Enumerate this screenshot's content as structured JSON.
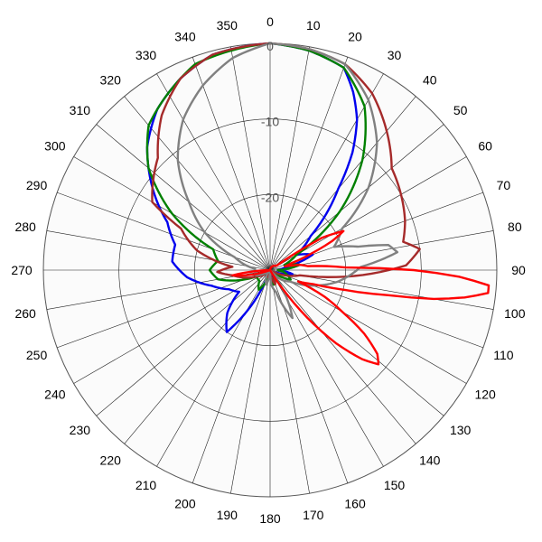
{
  "chart_data": {
    "type": "polar-line",
    "angle_unit": "degrees",
    "angle_zero": "top",
    "angle_direction": "clockwise",
    "angle_ticks": [
      "0",
      "10",
      "20",
      "30",
      "40",
      "50",
      "60",
      "70",
      "80",
      "90",
      "100",
      "110",
      "120",
      "130",
      "140",
      "150",
      "160",
      "170",
      "180",
      "190",
      "200",
      "210",
      "220",
      "230",
      "240",
      "250",
      "260",
      "270",
      "280",
      "290",
      "300",
      "310",
      "320",
      "330",
      "340",
      "350"
    ],
    "radial_ticks": [
      "0",
      "-10",
      "-20"
    ],
    "radial_range": [
      -30,
      0
    ],
    "grid": true,
    "series": [
      {
        "color": "#0000ee",
        "points": [
          [
            0,
            0
          ],
          [
            10,
            -0.5
          ],
          [
            20,
            -1.5
          ],
          [
            25,
            -4
          ],
          [
            30,
            -7
          ],
          [
            35,
            -11
          ],
          [
            40,
            -16
          ],
          [
            50,
            -23
          ],
          [
            60,
            -26
          ],
          [
            70,
            -24
          ],
          [
            80,
            -28
          ],
          [
            90,
            -29
          ],
          [
            100,
            -27
          ],
          [
            110,
            -29
          ],
          [
            130,
            -30
          ],
          [
            150,
            -30
          ],
          [
            170,
            -29
          ],
          [
            180,
            -30
          ],
          [
            200,
            -30
          ],
          [
            215,
            -20
          ],
          [
            225,
            -22
          ],
          [
            235,
            -25
          ],
          [
            245,
            -24
          ],
          [
            255,
            -22
          ],
          [
            265,
            -19
          ],
          [
            275,
            -17
          ],
          [
            285,
            -17
          ],
          [
            295,
            -15
          ],
          [
            305,
            -11
          ],
          [
            315,
            -7
          ],
          [
            325,
            -4
          ],
          [
            335,
            -2
          ],
          [
            345,
            -0.5
          ],
          [
            360,
            0
          ]
        ]
      },
      {
        "color": "#008000",
        "points": [
          [
            0,
            0
          ],
          [
            10,
            -0.5
          ],
          [
            20,
            -1.5
          ],
          [
            30,
            -5
          ],
          [
            40,
            -11
          ],
          [
            50,
            -18
          ],
          [
            60,
            -26
          ],
          [
            70,
            -28
          ],
          [
            80,
            -26
          ],
          [
            90,
            -29
          ],
          [
            100,
            -28
          ],
          [
            115,
            -27
          ],
          [
            130,
            -30
          ],
          [
            150,
            -29
          ],
          [
            165,
            -28
          ],
          [
            180,
            -30
          ],
          [
            195,
            -29
          ],
          [
            210,
            -27
          ],
          [
            225,
            -28
          ],
          [
            245,
            -28
          ],
          [
            260,
            -23
          ],
          [
            270,
            -22
          ],
          [
            280,
            -23
          ],
          [
            290,
            -22
          ],
          [
            300,
            -15
          ],
          [
            310,
            -9
          ],
          [
            320,
            -5
          ],
          [
            330,
            -3
          ],
          [
            340,
            -1
          ],
          [
            360,
            0
          ]
        ]
      },
      {
        "color": "#a52a2a",
        "points": [
          [
            0,
            0
          ],
          [
            10,
            -0.3
          ],
          [
            20,
            -1
          ],
          [
            30,
            -3
          ],
          [
            40,
            -6
          ],
          [
            50,
            -9
          ],
          [
            60,
            -10
          ],
          [
            70,
            -11
          ],
          [
            78,
            -12
          ],
          [
            82,
            -10
          ],
          [
            88,
            -12
          ],
          [
            95,
            -20
          ],
          [
            100,
            -26
          ],
          [
            110,
            -28
          ],
          [
            120,
            -30
          ],
          [
            140,
            -30
          ],
          [
            160,
            -28
          ],
          [
            180,
            -30
          ],
          [
            200,
            -29
          ],
          [
            220,
            -30
          ],
          [
            245,
            -28
          ],
          [
            262,
            -25
          ],
          [
            268,
            -23
          ],
          [
            275,
            -25
          ],
          [
            285,
            -20
          ],
          [
            295,
            -17
          ],
          [
            300,
            -12
          ],
          [
            305,
            -11
          ],
          [
            315,
            -9
          ],
          [
            325,
            -5
          ],
          [
            335,
            -2
          ],
          [
            345,
            -0.5
          ],
          [
            360,
            0
          ]
        ]
      },
      {
        "color": "#808080",
        "points": [
          [
            0,
            0
          ],
          [
            10,
            -0.3
          ],
          [
            20,
            -1
          ],
          [
            30,
            -4
          ],
          [
            40,
            -8
          ],
          [
            50,
            -13
          ],
          [
            60,
            -19
          ],
          [
            70,
            -21
          ],
          [
            75,
            -18
          ],
          [
            78,
            -14
          ],
          [
            82,
            -13
          ],
          [
            88,
            -18
          ],
          [
            100,
            -21
          ],
          [
            110,
            -24
          ],
          [
            120,
            -27
          ],
          [
            130,
            -28
          ],
          [
            140,
            -30
          ],
          [
            155,
            -23
          ],
          [
            165,
            -27
          ],
          [
            175,
            -28
          ],
          [
            180,
            -30
          ],
          [
            195,
            -28
          ],
          [
            210,
            -29
          ],
          [
            230,
            -30
          ],
          [
            250,
            -28
          ],
          [
            275,
            -28
          ],
          [
            290,
            -25
          ],
          [
            300,
            -20
          ],
          [
            310,
            -16
          ],
          [
            320,
            -11
          ],
          [
            330,
            -7
          ],
          [
            340,
            -4
          ],
          [
            350,
            -1.5
          ],
          [
            360,
            0
          ]
        ]
      },
      {
        "color": "#ff0000",
        "points": [
          [
            0,
            -30
          ],
          [
            55,
            -29
          ],
          [
            58,
            -22
          ],
          [
            62,
            -19
          ],
          [
            65,
            -21
          ],
          [
            68,
            -24
          ],
          [
            72,
            -27
          ],
          [
            76,
            -28
          ],
          [
            80,
            -26
          ],
          [
            84,
            -25
          ],
          [
            88,
            -20
          ],
          [
            90,
            -11
          ],
          [
            92,
            -5
          ],
          [
            94,
            -1
          ],
          [
            96,
            -1
          ],
          [
            98,
            -4
          ],
          [
            100,
            -8
          ],
          [
            102,
            -14
          ],
          [
            105,
            -20
          ],
          [
            108,
            -24
          ],
          [
            112,
            -26
          ],
          [
            116,
            -22
          ],
          [
            120,
            -19
          ],
          [
            124,
            -15
          ],
          [
            128,
            -12
          ],
          [
            131,
            -11
          ],
          [
            134,
            -13
          ],
          [
            138,
            -17
          ],
          [
            142,
            -22
          ],
          [
            146,
            -27
          ],
          [
            150,
            -30
          ],
          [
            200,
            -30
          ],
          [
            250,
            -30
          ],
          [
            262,
            -25
          ],
          [
            266,
            -28
          ],
          [
            270,
            -30
          ],
          [
            360,
            -30
          ]
        ]
      }
    ]
  }
}
